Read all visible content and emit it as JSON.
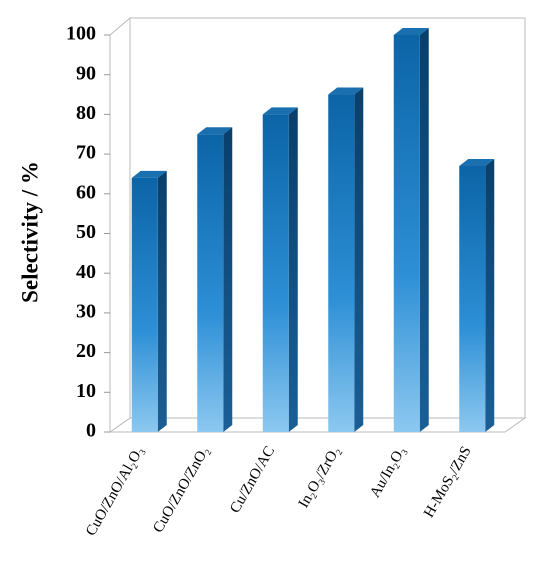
{
  "chart_data": {
    "type": "bar3d",
    "ylabel": "Selectivity  / %",
    "categories": [
      "CuO/ZnO/Al₂O₃",
      "CuO/ZnO/ZnO₂",
      "Cu/ZnO/AC",
      "In₂O₃/ZrO₂",
      "Au/In₂O₃",
      "H-MoS₂/ZnS"
    ],
    "values": [
      64,
      75,
      80,
      85,
      100,
      67
    ],
    "color": "#1a6fae",
    "ylim": [
      0,
      100
    ],
    "yticks": [
      0,
      10,
      20,
      30,
      40,
      50,
      60,
      70,
      80,
      90,
      100
    ]
  }
}
